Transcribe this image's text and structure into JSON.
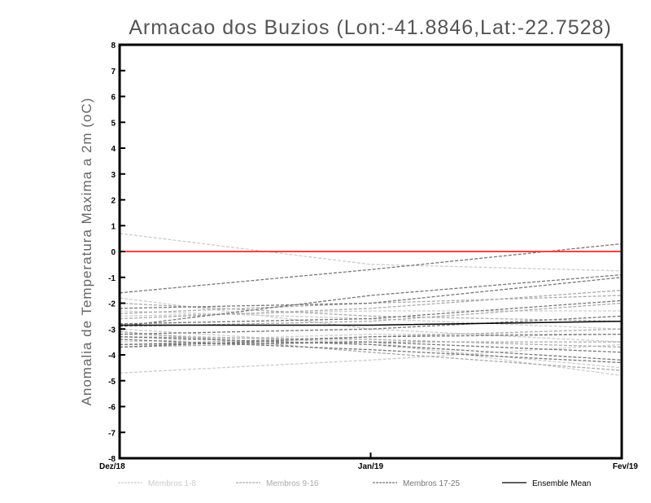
{
  "chart_data": {
    "type": "line",
    "title": "Armacao dos Buzios (Lon:-41.8846,Lat:-22.7528)",
    "xlabel": "",
    "ylabel": "Anomalia de Temperatura Maxima a 2m (oC)",
    "categories": [
      "Dez/18",
      "Jan/19",
      "Fev/19"
    ],
    "ylim": [
      -8,
      8
    ],
    "yticks": [
      -8,
      -7,
      -6,
      -5,
      -4,
      -3,
      -2,
      -1,
      0,
      1,
      2,
      3,
      4,
      5,
      6,
      7,
      8
    ],
    "grid": false,
    "reference_line": {
      "value": 0,
      "color": "#ff4040"
    },
    "legend": {
      "placement": "bottom",
      "entries": [
        {
          "label": "Membros 1-8",
          "color": "#cccccc",
          "style": "dashed"
        },
        {
          "label": "Membros 9-16",
          "color": "#aaaaaa",
          "style": "dashed"
        },
        {
          "label": "Membros 17-25",
          "color": "#777777",
          "style": "dashed"
        },
        {
          "label": "Ensemble Mean",
          "color": "#000000",
          "style": "solid"
        }
      ]
    },
    "groups": [
      {
        "legend_index": 0,
        "members": [
          [
            0.7,
            -0.5,
            -0.75
          ],
          [
            -4.7,
            -4.2,
            -3.6
          ],
          [
            -2.3,
            -2.6,
            -3.0
          ],
          [
            -3.2,
            -3.5,
            -4.8
          ],
          [
            -3.5,
            -3.2,
            -3.2
          ],
          [
            -2.5,
            -2.3,
            -2.3
          ],
          [
            -3.0,
            -3.6,
            -4.5
          ],
          [
            -1.8,
            -3.0,
            -3.5
          ]
        ]
      },
      {
        "legend_index": 1,
        "members": [
          [
            -2.4,
            -2.0,
            -1.7
          ],
          [
            -3.3,
            -3.4,
            -3.7
          ],
          [
            -3.6,
            -3.3,
            -3.0
          ],
          [
            -2.0,
            -2.5,
            -2.7
          ],
          [
            -3.1,
            -3.9,
            -4.6
          ],
          [
            -2.9,
            -2.7,
            -2.0
          ],
          [
            -3.7,
            -3.5,
            -3.5
          ],
          [
            -2.6,
            -2.2,
            -1.5
          ]
        ]
      },
      {
        "legend_index": 2,
        "members": [
          [
            -1.6,
            -0.7,
            0.3
          ],
          [
            -2.9,
            -1.7,
            -0.9
          ],
          [
            -3.2,
            -3.0,
            -2.5
          ],
          [
            -2.2,
            -2.0,
            -1.0
          ],
          [
            -3.7,
            -3.3,
            -3.2
          ],
          [
            -3.4,
            -3.8,
            -4.3
          ],
          [
            -2.8,
            -2.6,
            -1.9
          ],
          [
            -3.6,
            -3.5,
            -3.9
          ],
          [
            -3.3,
            -3.6,
            -4.2
          ]
        ]
      }
    ],
    "ensemble_mean": [
      -2.85,
      -2.85,
      -2.7
    ]
  }
}
